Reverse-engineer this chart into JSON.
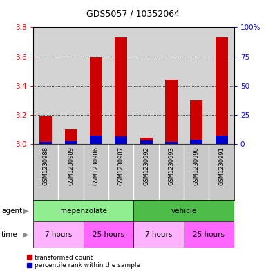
{
  "title": "GDS5057 / 10352064",
  "samples": [
    "GSM1230988",
    "GSM1230989",
    "GSM1230986",
    "GSM1230987",
    "GSM1230992",
    "GSM1230993",
    "GSM1230990",
    "GSM1230991"
  ],
  "red_values": [
    3.19,
    3.1,
    3.595,
    3.73,
    3.045,
    3.44,
    3.3,
    3.73
  ],
  "blue_values": [
    3.015,
    3.02,
    3.06,
    3.055,
    3.025,
    3.015,
    3.03,
    3.06
  ],
  "y_min": 3.0,
  "y_max": 3.8,
  "y_ticks_left": [
    3.0,
    3.2,
    3.4,
    3.6,
    3.8
  ],
  "y_ticks_right": [
    0,
    25,
    50,
    75,
    100
  ],
  "bar_color_red": "#CC0000",
  "bar_color_blue": "#0000CC",
  "bar_width": 0.5,
  "bg_plot": "#D3D3D3",
  "bg_sample": "#C8C8C8",
  "agent_mepe_color": "#90EE90",
  "agent_vehicle_color": "#4CBB47",
  "time_7_color": "#FFB3FF",
  "time_25_color": "#FF66FF",
  "legend_red": "transformed count",
  "legend_blue": "percentile rank within the sample",
  "title_fontsize": 9,
  "axis_fontsize": 7.5,
  "label_fontsize": 7.5,
  "sample_fontsize": 6
}
